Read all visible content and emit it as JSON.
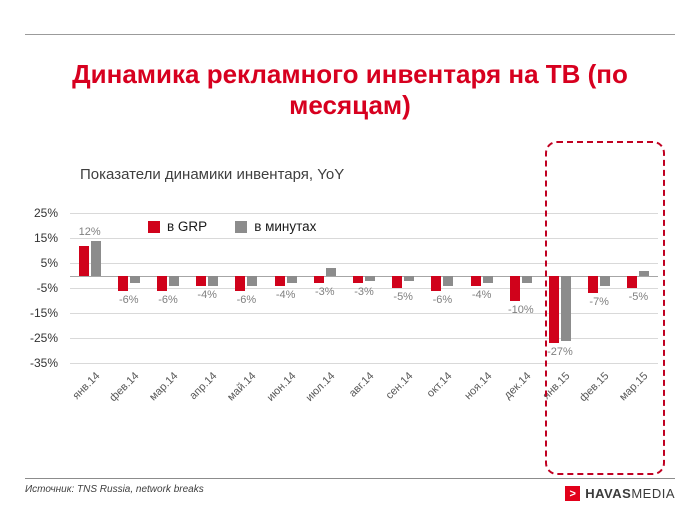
{
  "title": "Динамика рекламного инвентаря на ТВ (по месяцам)",
  "subtitle": "Показатели динамики инвентаря, YoY",
  "footer": {
    "source": "Источник: TNS Russia, network breaks"
  },
  "logo": {
    "havas": "HAVAS",
    "media": "MEDIA",
    "mark_glyph": ">"
  },
  "colors": {
    "title_red": "#d7001f",
    "grp_red": "#d0021b",
    "minutes_gray": "#8c8c8c",
    "highlight_border": "#c00021"
  },
  "chart_data": {
    "type": "bar",
    "categories": [
      "янв.14",
      "фев.14",
      "мар.14",
      "апр.14",
      "май.14",
      "июн.14",
      "июл.14",
      "авг.14",
      "сен.14",
      "окт.14",
      "ноя.14",
      "дек.14",
      "янв.15",
      "фев.15",
      "мар.15"
    ],
    "series": [
      {
        "name": "в GRP",
        "color": "#d0021b",
        "values": [
          12,
          -6,
          -6,
          -4,
          -6,
          -4,
          -3,
          -3,
          -5,
          -6,
          -4,
          -10,
          -27,
          -7,
          -5
        ]
      },
      {
        "name": "в минутах",
        "color": "#8c8c8c",
        "values": [
          14,
          -3,
          -4,
          -4,
          -4,
          -3,
          3,
          -2,
          -2,
          -4,
          -3,
          -3,
          -26,
          -4,
          2
        ]
      }
    ],
    "labels": [
      "12%",
      "-6%",
      "-6%",
      "-4%",
      "-6%",
      "-4%",
      "-3%",
      "-3%",
      "-5%",
      "-6%",
      "-4%",
      "-10%",
      "-27%",
      "-7%",
      "-5%"
    ],
    "ylim": [
      -35,
      25
    ],
    "yticks": [
      "25%",
      "15%",
      "5%",
      "-5%",
      "-15%",
      "-25%",
      "-35%"
    ],
    "legend_position": "top-left-inside",
    "grid": true,
    "highlight_last_n": 3
  }
}
